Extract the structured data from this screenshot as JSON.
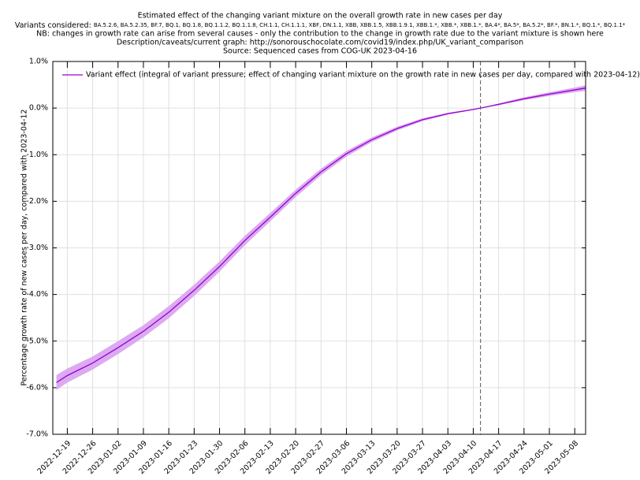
{
  "chart_data": {
    "type": "line",
    "title": "Estimated effect of the changing variant mixture on the overall growth rate in new cases per day",
    "variants_label": "Variants considered:",
    "variants": "BA.5.2.6, BA.5.2.35, BF.7, BQ.1, BQ.1.8, BQ.1.1.2, BQ.1.1.8, CH.1.1, CH.1.1.1, XBF, DN.1.1, XBB, XBB.1.5, XBB.1.9.1, XBB.1.*, XBB.*, XBB.1.*, BA.4*, BA.5*, BA.5.2*, BF.*, BN.1.*, BQ.1.*, BQ.1.1*",
    "note": "NB: changes in growth rate can arise from several causes - only the contribution to the change in growth rate due to the variant mixture is shown here",
    "description": "Description/caveats/current graph: http://sonorouschocolate.com/covid19/index.php/UK_variant_comparison",
    "source": "Source: Sequenced cases from COG-UK 2023-04-16",
    "ylabel": "Percentage growth rate of new cases per day, compared with 2023-04-12",
    "x": [
      "2022-12-16",
      "2022-12-19",
      "2022-12-26",
      "2023-01-02",
      "2023-01-09",
      "2023-01-16",
      "2023-01-23",
      "2023-01-30",
      "2023-02-06",
      "2023-02-13",
      "2023-02-20",
      "2023-02-27",
      "2023-03-06",
      "2023-03-13",
      "2023-03-20",
      "2023-03-27",
      "2023-04-03",
      "2023-04-10",
      "2023-04-12",
      "2023-04-17",
      "2023-04-24",
      "2023-05-01",
      "2023-05-08",
      "2023-05-11"
    ],
    "series": [
      {
        "name": "Variant effect (integral of variant pressure; effect of changing variant mixture on the growth rate in new cases per day, compared with 2023-04-12)",
        "color": "#9400d3",
        "band_color": "#dcaaf0",
        "values": [
          -5.89,
          -5.74,
          -5.47,
          -5.14,
          -4.79,
          -4.38,
          -3.91,
          -3.4,
          -2.84,
          -2.34,
          -1.83,
          -1.37,
          -0.98,
          -0.68,
          -0.44,
          -0.25,
          -0.12,
          -0.03,
          0,
          0.08,
          0.2,
          0.3,
          0.39,
          0.43
        ],
        "upper": [
          -5.73,
          -5.59,
          -5.33,
          -5.0,
          -4.66,
          -4.25,
          -3.79,
          -3.29,
          -2.74,
          -2.25,
          -1.75,
          -1.3,
          -0.92,
          -0.63,
          -0.4,
          -0.22,
          -0.1,
          -0.02,
          0,
          0.1,
          0.23,
          0.34,
          0.44,
          0.49
        ],
        "lower": [
          -6.05,
          -5.89,
          -5.61,
          -5.28,
          -4.92,
          -4.51,
          -4.03,
          -3.51,
          -2.94,
          -2.43,
          -1.91,
          -1.44,
          -1.04,
          -0.73,
          -0.48,
          -0.28,
          -0.14,
          -0.04,
          0,
          0.06,
          0.17,
          0.26,
          0.34,
          0.37
        ]
      }
    ],
    "xlim": [
      "2022-12-15",
      "2023-05-11"
    ],
    "xticks": [
      "2022-12-19",
      "2022-12-26",
      "2023-01-02",
      "2023-01-09",
      "2023-01-16",
      "2023-01-23",
      "2023-01-30",
      "2023-02-06",
      "2023-02-13",
      "2023-02-20",
      "2023-02-27",
      "2023-03-06",
      "2023-03-13",
      "2023-03-20",
      "2023-03-27",
      "2023-04-03",
      "2023-04-10",
      "2023-04-17",
      "2023-04-24",
      "2023-05-01",
      "2023-05-08"
    ],
    "ylim": [
      -7,
      1
    ],
    "yticks": [
      {
        "value": -7,
        "label": "-7.0%"
      },
      {
        "value": -6,
        "label": "-6.0%"
      },
      {
        "value": -5,
        "label": "-5.0%"
      },
      {
        "value": -4,
        "label": "-4.0%"
      },
      {
        "value": -3,
        "label": "-3.0%"
      },
      {
        "value": -2,
        "label": "-2.0%"
      },
      {
        "value": -1,
        "label": "-1.0%"
      },
      {
        "value": 0,
        "label": "0.0%"
      },
      {
        "value": 1,
        "label": "1.0%"
      }
    ],
    "vline": "2023-04-12",
    "grid": true,
    "legend": "top-left"
  }
}
